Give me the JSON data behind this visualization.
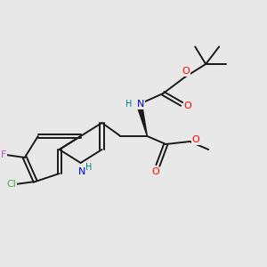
{
  "background_color": "#e8e8e8",
  "bond_color": "#1a1a1a",
  "atom_colors": {
    "O": "#ff0000",
    "N": "#0000cc",
    "N_H_color": "#008080",
    "F": "#cc44cc",
    "Cl": "#44aa44",
    "H": "#888888",
    "C": "#1a1a1a"
  },
  "figsize": [
    3.0,
    3.0
  ],
  "dpi": 100
}
